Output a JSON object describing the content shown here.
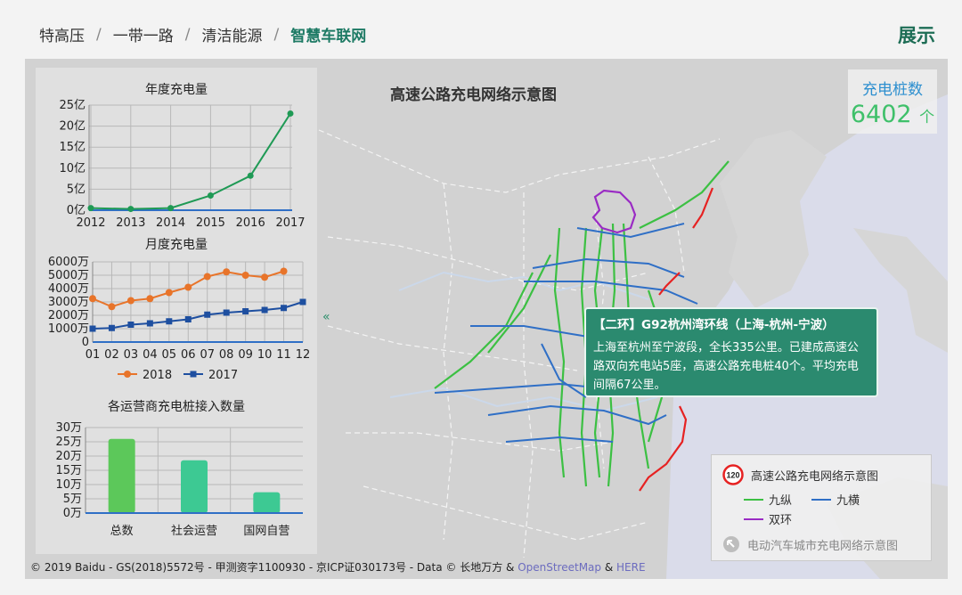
{
  "breadcrumb": [
    "特高压",
    "一带一路",
    "清洁能源",
    "智慧车联网"
  ],
  "breadcrumb_sep": "/",
  "header_right": "展示",
  "map": {
    "title": "高速公路充电网络示意图",
    "counter_label": "充电桩数",
    "counter_value": "6402",
    "counter_unit": "个",
    "collapse_glyph": "«"
  },
  "tooltip": {
    "title": "【二环】G92杭州湾环线（上海-杭州-宁波）",
    "body": "上海至杭州至宁波段，全长335公里。已建成高速公路双向充电站5座，高速公路充电桩40个。平均充电间隔67公里。"
  },
  "legend": {
    "badge": "120",
    "title": "高速公路充电网络示意图",
    "items": [
      {
        "label": "九纵",
        "color": "#3cc043"
      },
      {
        "label": "九横",
        "color": "#2f6fc6"
      },
      {
        "label": "双环",
        "color": "#9a2bc4"
      }
    ],
    "red_line_color": "#e62222",
    "link": "电动汽车城市充电网络示意图"
  },
  "copyright": {
    "text": "© 2019 Baidu - GS(2018)5572号 - 甲测资字1100930 - 京ICP证030173号 - Data © 长地万方 & ",
    "link1": "OpenStreetMap",
    "amp": " & ",
    "link2": "HERE"
  },
  "chart_data": [
    {
      "type": "line",
      "title": "年度充电量",
      "x": [
        "2012",
        "2013",
        "2014",
        "2015",
        "2016",
        "2017"
      ],
      "yticks": [
        "0亿",
        "5亿",
        "10亿",
        "15亿",
        "20亿",
        "25亿"
      ],
      "ylim": [
        0,
        25
      ],
      "series": [
        {
          "values": [
            0.5,
            0.3,
            0.5,
            3.5,
            8.2,
            23
          ],
          "color": "#1f9a55"
        }
      ]
    },
    {
      "type": "line",
      "title": "月度充电量",
      "x": [
        "01",
        "02",
        "03",
        "04",
        "05",
        "06",
        "07",
        "08",
        "09",
        "10",
        "11",
        "12"
      ],
      "yticks": [
        "0",
        "1000万",
        "2000万",
        "3000万",
        "4000万",
        "5000万",
        "6000万"
      ],
      "ylim": [
        0,
        6000
      ],
      "series": [
        {
          "name": "2018",
          "color": "#e8742a",
          "values": [
            3250,
            2650,
            3100,
            3250,
            3700,
            4100,
            4900,
            5250,
            5000,
            4850,
            5300,
            null
          ]
        },
        {
          "name": "2017",
          "color": "#1e4fa0",
          "values": [
            1000,
            1050,
            1300,
            1400,
            1550,
            1700,
            2050,
            2200,
            2300,
            2400,
            2550,
            3000
          ]
        }
      ]
    },
    {
      "type": "bar",
      "title": "各运营商充电桩接入数量",
      "categories": [
        "总数",
        "社会运营",
        "国网自营"
      ],
      "yticks": [
        "0万",
        "5万",
        "10万",
        "15万",
        "20万",
        "25万",
        "30万"
      ],
      "ylim": [
        0,
        30
      ],
      "values": [
        26,
        18.5,
        7.3
      ],
      "colors": [
        "#5cc85a",
        "#3dc993",
        "#3dc993"
      ]
    }
  ]
}
